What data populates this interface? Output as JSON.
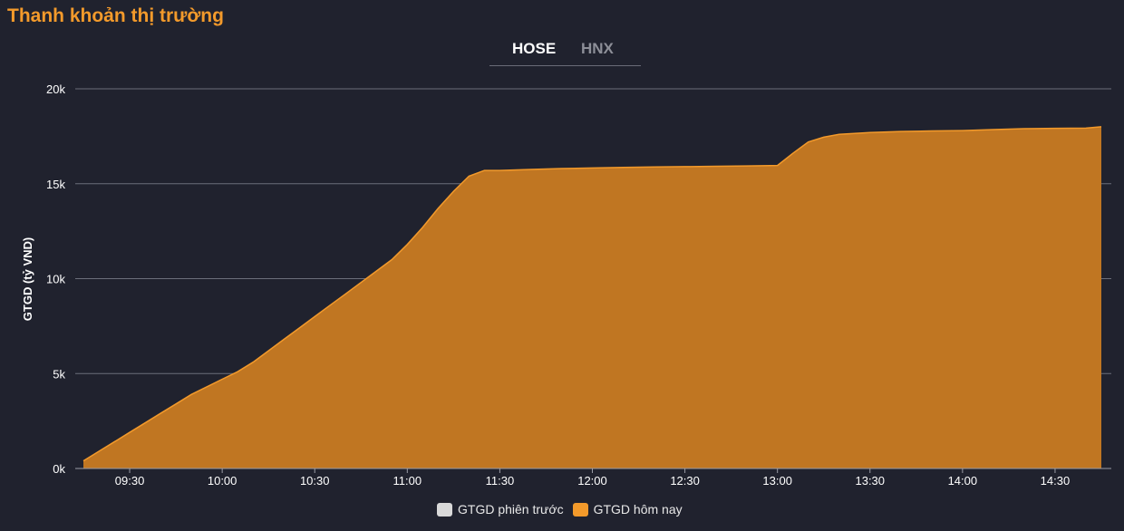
{
  "header": {
    "title": "Thanh khoản thị trường"
  },
  "tabs": [
    {
      "label": "HOSE",
      "active": true
    },
    {
      "label": "HNX",
      "active": false
    }
  ],
  "legend": [
    {
      "label": "GTGD phiên trước",
      "color": "#d9d9d9"
    },
    {
      "label": "GTGD hôm nay",
      "color": "#f39a2b"
    }
  ],
  "colors": {
    "area_fill": "#c07622",
    "area_stroke": "#f39a2b",
    "grid": "#6b6e7a",
    "axis_text": "#ffffff",
    "title": "#f39a2b"
  },
  "chart_data": {
    "type": "area",
    "title": "",
    "ylabel": "GTGD (tỷ VND)",
    "xlabel": "",
    "ylim": [
      0,
      20000
    ],
    "yticks": [
      0,
      5000,
      10000,
      15000,
      20000
    ],
    "ytick_labels": [
      "0k",
      "5k",
      "10k",
      "15k",
      "20k"
    ],
    "xticks": [
      "09:30",
      "10:00",
      "10:30",
      "11:00",
      "11:30",
      "12:00",
      "12:30",
      "13:00",
      "13:30",
      "14:00",
      "14:30"
    ],
    "x_range": [
      "09:15",
      "14:45"
    ],
    "grid": true,
    "legend_position": "bottom",
    "series": [
      {
        "name": "GTGD phiên trước",
        "x": [],
        "values": []
      },
      {
        "name": "GTGD hôm nay",
        "x": [
          "09:15",
          "09:20",
          "09:25",
          "09:30",
          "09:35",
          "09:40",
          "09:45",
          "09:50",
          "09:55",
          "10:00",
          "10:05",
          "10:10",
          "10:15",
          "10:20",
          "10:25",
          "10:30",
          "10:35",
          "10:40",
          "10:45",
          "10:50",
          "10:55",
          "11:00",
          "11:05",
          "11:10",
          "11:15",
          "11:20",
          "11:25",
          "11:30",
          "11:40",
          "11:50",
          "12:00",
          "12:10",
          "12:20",
          "12:30",
          "12:40",
          "12:50",
          "13:00",
          "13:05",
          "13:10",
          "13:15",
          "13:20",
          "13:25",
          "13:30",
          "13:40",
          "13:50",
          "14:00",
          "14:10",
          "14:20",
          "14:30",
          "14:40",
          "14:45"
        ],
        "values": [
          400,
          900,
          1400,
          1900,
          2400,
          2900,
          3400,
          3900,
          4300,
          4700,
          5100,
          5600,
          6200,
          6800,
          7400,
          8000,
          8600,
          9200,
          9800,
          10400,
          11000,
          11800,
          12700,
          13700,
          14600,
          15400,
          15700,
          15700,
          15750,
          15800,
          15830,
          15860,
          15880,
          15900,
          15920,
          15940,
          15960,
          16600,
          17200,
          17450,
          17600,
          17650,
          17700,
          17750,
          17780,
          17800,
          17850,
          17900,
          17920,
          17930,
          18000
        ]
      }
    ]
  }
}
